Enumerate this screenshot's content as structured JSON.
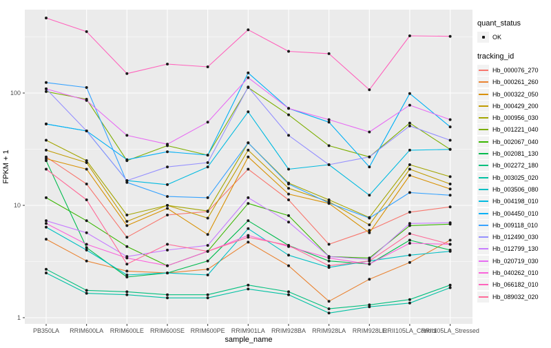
{
  "chart_data": {
    "type": "line",
    "title": "",
    "xlabel": "sample_name",
    "ylabel": "FPKM + 1",
    "y_scale": "log10",
    "ylim": [
      0.9,
      555
    ],
    "y_ticks": [
      1,
      10,
      100
    ],
    "grid": true,
    "legend_position": "right",
    "panel_color": "#EBEBEB",
    "grid_color": "#FFFFFF",
    "point_color": "#1A1A1A",
    "categories": [
      "PB350LA",
      "RRIM600LA",
      "RRIM600LE",
      "RRIM600SE",
      "RRIM600PE",
      "RRIM901LA",
      "RRIM928BA",
      "RRIM928LA",
      "RRIM928LE",
      "RRII105LA_Control",
      "RRII105LA_Stressed"
    ],
    "series": [
      {
        "name": "Hb_000076_270",
        "color": "#F8766D",
        "values": [
          27,
          15.5,
          5.2,
          8.2,
          8.8,
          21,
          11.2,
          4.5,
          6.0,
          8.7,
          9.7
        ]
      },
      {
        "name": "Hb_000261_260",
        "color": "#EA8331",
        "values": [
          5.0,
          3.2,
          2.6,
          2.5,
          2.7,
          4.7,
          2.9,
          1.4,
          2.2,
          3.1,
          4.9
        ]
      },
      {
        "name": "Hb_000322_050",
        "color": "#D89000",
        "values": [
          26,
          21,
          6.6,
          9.4,
          5.5,
          27,
          12.6,
          10.4,
          5.7,
          18.5,
          14
        ]
      },
      {
        "name": "Hb_000429_200",
        "color": "#C09B00",
        "values": [
          31,
          24,
          7.2,
          10,
          7.7,
          31,
          14.2,
          10.8,
          6.7,
          21,
          15.5
        ]
      },
      {
        "name": "Hb_000956_030",
        "color": "#A3A500",
        "values": [
          38,
          25,
          8.2,
          10,
          8.9,
          36,
          15.8,
          11.2,
          7.8,
          23,
          18
        ]
      },
      {
        "name": "Hb_001221_040",
        "color": "#7CAE00",
        "values": [
          103,
          88,
          25,
          34,
          28,
          112,
          64,
          34,
          27,
          54,
          31.5
        ]
      },
      {
        "name": "Hb_002067_040",
        "color": "#39B600",
        "values": [
          11.7,
          7.3,
          4.3,
          2.9,
          3.9,
          10.4,
          8.1,
          3.5,
          3.4,
          6.6,
          6.8
        ]
      },
      {
        "name": "Hb_002081_130",
        "color": "#00BB4E",
        "values": [
          25,
          4.2,
          2.3,
          2.5,
          3.2,
          7.3,
          4.4,
          3.2,
          3.0,
          4.9,
          4.0
        ]
      },
      {
        "name": "Hb_002272_180",
        "color": "#00BF7D",
        "values": [
          2.7,
          1.75,
          1.7,
          1.6,
          1.6,
          1.95,
          1.7,
          1.2,
          1.3,
          1.45,
          1.95
        ]
      },
      {
        "name": "Hb_003025_020",
        "color": "#00C1A3",
        "values": [
          2.5,
          1.65,
          1.6,
          1.5,
          1.5,
          1.8,
          1.6,
          1.1,
          1.25,
          1.35,
          1.85
        ]
      },
      {
        "name": "Hb_003506_080",
        "color": "#00BFC4",
        "values": [
          6.4,
          4.0,
          2.4,
          2.5,
          2.4,
          6.2,
          3.6,
          2.8,
          3.2,
          3.6,
          3.9
        ]
      },
      {
        "name": "Hb_004198_010",
        "color": "#00BAE0",
        "values": [
          53,
          46,
          16.6,
          15.3,
          22,
          68,
          21,
          23,
          12.3,
          31,
          31.5
        ]
      },
      {
        "name": "Hb_004450_010",
        "color": "#00B0F6",
        "values": [
          53,
          46,
          25.5,
          30,
          28,
          151,
          73,
          55,
          22,
          99,
          50
        ]
      },
      {
        "name": "Hb_009118_010",
        "color": "#35A2FF",
        "values": [
          124,
          112,
          16,
          12,
          11.7,
          36,
          15.5,
          10.5,
          7.7,
          13,
          12.3
        ]
      },
      {
        "name": "Hb_012490_030",
        "color": "#9590FF",
        "values": [
          109,
          46,
          16.6,
          22,
          24,
          113,
          42,
          23,
          27,
          51,
          38
        ]
      },
      {
        "name": "Hb_012799_130",
        "color": "#C77CFF",
        "values": [
          7.3,
          5.7,
          3.5,
          4.0,
          4.4,
          11.7,
          7.1,
          3.5,
          3.3,
          6.9,
          7.0
        ]
      },
      {
        "name": "Hb_020719_030",
        "color": "#E76BF3",
        "values": [
          109,
          86,
          42,
          35,
          55,
          137,
          73,
          58,
          45,
          78,
          58
        ]
      },
      {
        "name": "Hb_040262_010",
        "color": "#FA62DB",
        "values": [
          6.9,
          4.5,
          3.4,
          2.9,
          3.9,
          5.4,
          4.3,
          3.4,
          3.0,
          4.6,
          4.5
        ]
      },
      {
        "name": "Hb_066182_010",
        "color": "#FF62BC",
        "values": [
          466,
          352,
          149,
          181,
          171,
          366,
          235,
          224,
          107,
          323,
          320
        ]
      },
      {
        "name": "Hb_089032_020",
        "color": "#FF6A98",
        "values": [
          21,
          11.2,
          3.0,
          4.5,
          3.9,
          5.2,
          4.4,
          2.9,
          3.2,
          5.6,
          4.5
        ]
      }
    ],
    "legend": {
      "quant_status": {
        "title": "quant_status",
        "items": [
          {
            "label": "OK",
            "marker": "black-point"
          }
        ]
      },
      "tracking_id": {
        "title": "tracking_id"
      }
    }
  }
}
